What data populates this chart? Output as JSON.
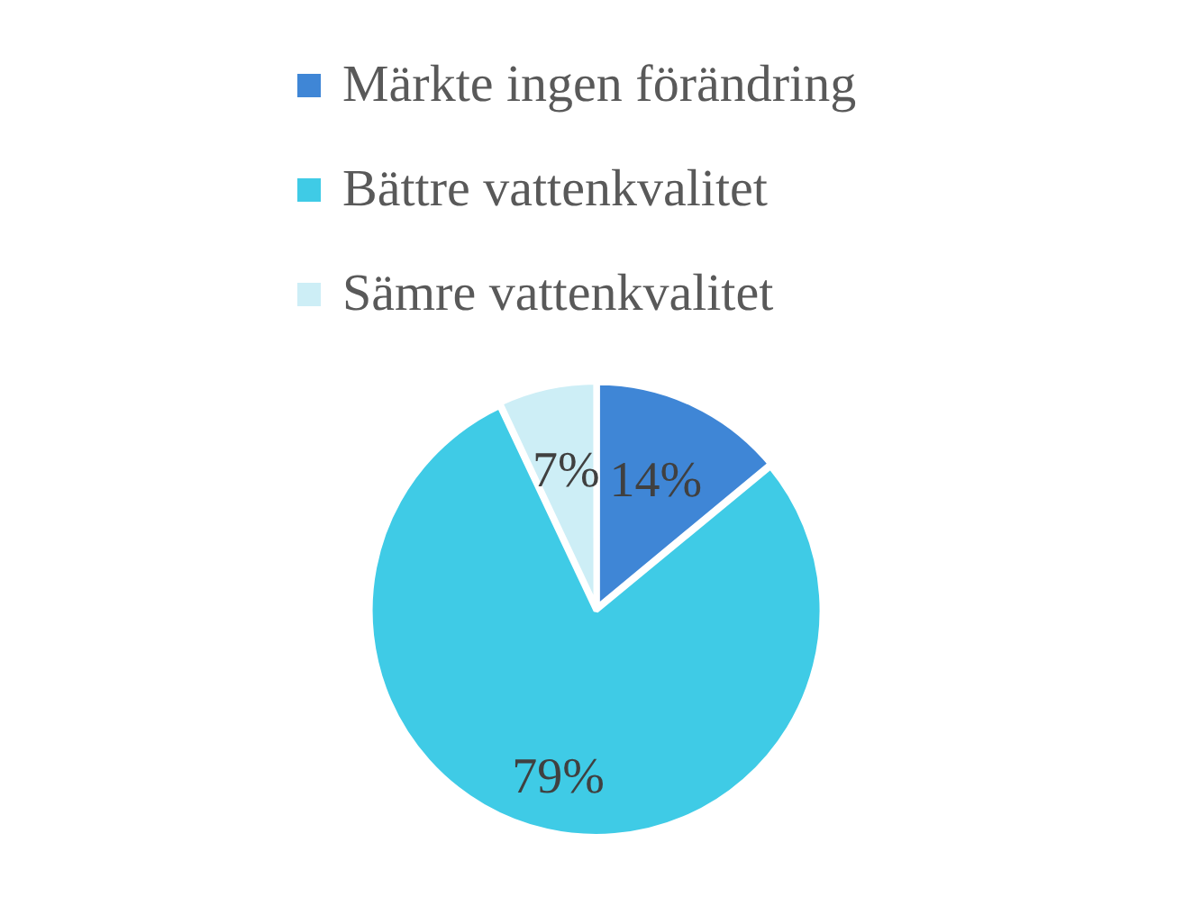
{
  "chart_data": {
    "type": "pie",
    "categories": [
      "Märkte ingen förändring",
      "Bättre vattenkvalitet",
      "Sämre vattenkvalitet"
    ],
    "values": [
      14,
      79,
      7
    ],
    "colors": [
      "#3f86d6",
      "#3fcbe6",
      "#cdeef6"
    ],
    "value_labels": [
      "14%",
      "79%",
      "7%"
    ],
    "legend": "top"
  }
}
